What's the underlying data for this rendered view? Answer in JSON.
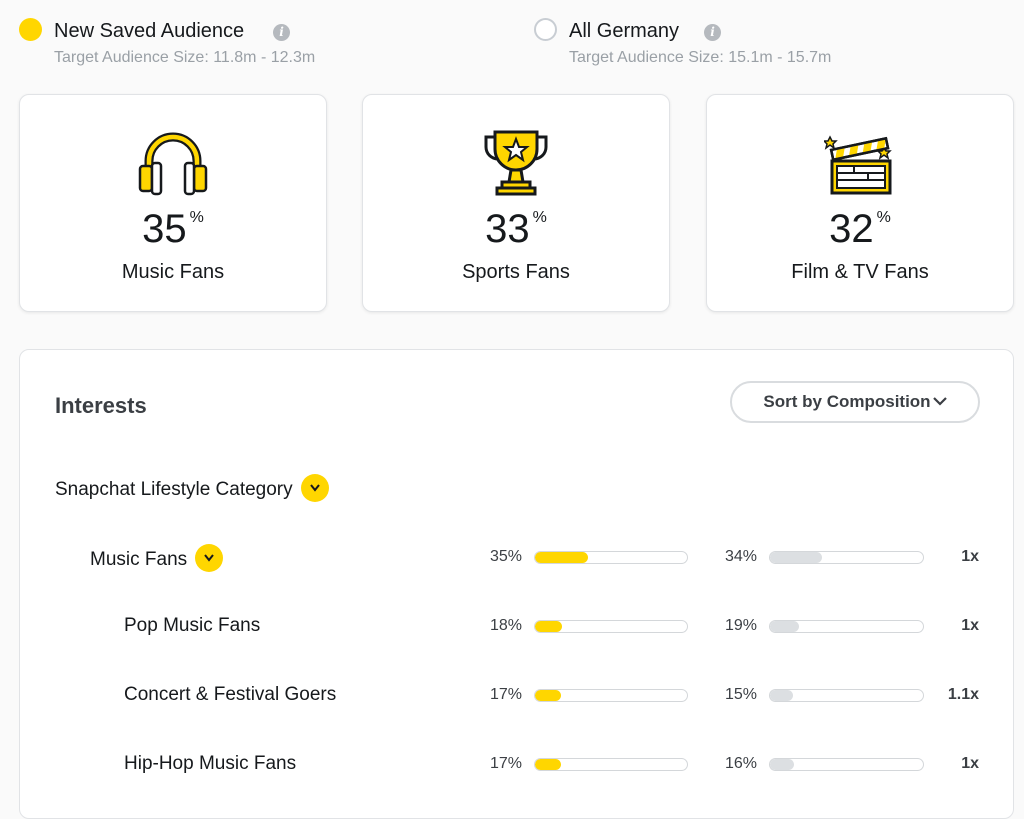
{
  "audiences": [
    {
      "name": "New Saved Audience",
      "size": "Target Audience Size: 11.8m - 12.3m",
      "selected": true,
      "color": "#ffd600"
    },
    {
      "name": "All Germany",
      "size": "Target Audience Size: 15.1m - 15.7m",
      "selected": false
    }
  ],
  "info_glyph": "i",
  "cards": [
    {
      "icon": "headphones-icon",
      "value": "35",
      "unit": "%",
      "label": "Music Fans"
    },
    {
      "icon": "trophy-icon",
      "value": "33",
      "unit": "%",
      "label": "Sports Fans"
    },
    {
      "icon": "clapperboard-icon",
      "value": "32",
      "unit": "%",
      "label": "Film & TV Fans"
    }
  ],
  "interests": {
    "title": "Interests",
    "sort_button": "Sort by Composition",
    "category": "Snapchat Lifestyle Category",
    "rows": [
      {
        "label": "Music Fans",
        "audience_pct": "35%",
        "audience_fill": 0.35,
        "baseline_pct": "34%",
        "baseline_fill": 0.34,
        "index": "1x",
        "expandable": true
      },
      {
        "label": "Pop Music Fans",
        "audience_pct": "18%",
        "audience_fill": 0.18,
        "baseline_pct": "19%",
        "baseline_fill": 0.19,
        "index": "1x"
      },
      {
        "label": "Concert & Festival Goers",
        "audience_pct": "17%",
        "audience_fill": 0.17,
        "baseline_pct": "15%",
        "baseline_fill": 0.15,
        "index": "1.1x"
      },
      {
        "label": "Hip-Hop Music Fans",
        "audience_pct": "17%",
        "audience_fill": 0.17,
        "baseline_pct": "16%",
        "baseline_fill": 0.16,
        "index": "1x"
      }
    ]
  },
  "colors": {
    "accent": "#ffd600",
    "baseline_bar": "#dcdfe2",
    "text": "#16191c",
    "muted": "#9aa0a6"
  }
}
